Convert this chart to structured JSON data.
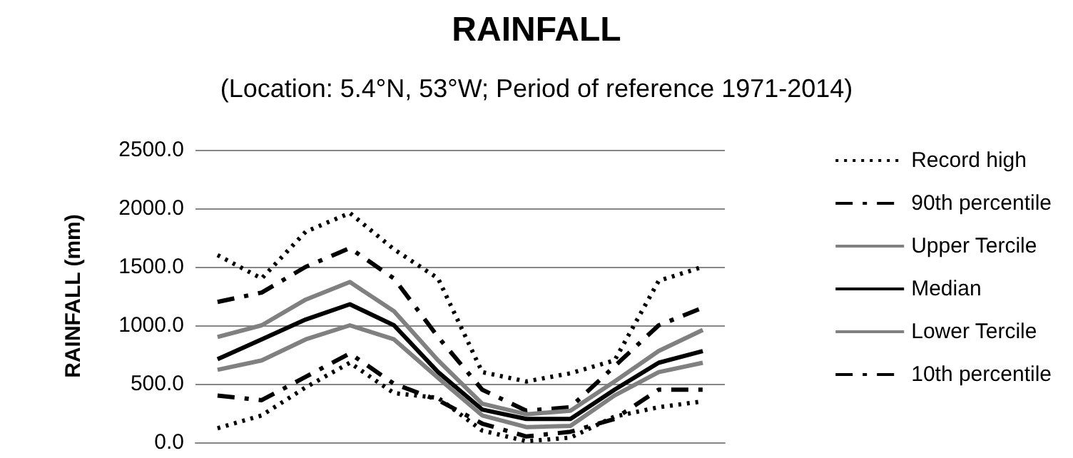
{
  "chart_data": {
    "type": "line",
    "title": "RAINFALL",
    "subtitle": "(Location: 5.4°N, 53°W; Period of reference 1971-2014)",
    "ylabel": "RAINFALL (mm)",
    "categories": [
      null,
      null,
      null,
      null,
      null,
      null,
      null,
      null,
      null,
      null,
      null,
      null
    ],
    "ylim": [
      0,
      2500
    ],
    "yticks": [
      {
        "value": 0,
        "label": "0.0"
      },
      {
        "value": 500,
        "label": "500.0"
      },
      {
        "value": 1000,
        "label": "1000.0"
      },
      {
        "value": 1500,
        "label": "1500.0"
      },
      {
        "value": 2000,
        "label": "2000.0"
      },
      {
        "value": 2500,
        "label": "2500.0"
      }
    ],
    "grid": "y",
    "legend": "right",
    "marker": "none",
    "series": [
      {
        "name": "Record high",
        "color": "#000000",
        "line_style": "dotted",
        "values": [
          1600,
          1400,
          1800,
          1960,
          1650,
          1400,
          600,
          520,
          590,
          700,
          1380,
          1500
        ]
      },
      {
        "name": "90th percentile",
        "color": "#000000",
        "line_style": "dashed",
        "values": [
          1200,
          1280,
          1500,
          1660,
          1400,
          900,
          450,
          270,
          300,
          650,
          1000,
          1150
        ]
      },
      {
        "name": "Upper Tercile",
        "color": "#808080",
        "line_style": "solid",
        "values": [
          900,
          1000,
          1220,
          1370,
          1120,
          700,
          330,
          240,
          270,
          520,
          780,
          960
        ]
      },
      {
        "name": "Median",
        "color": "#000000",
        "line_style": "solid",
        "values": [
          710,
          880,
          1050,
          1180,
          1000,
          600,
          280,
          200,
          200,
          450,
          680,
          780
        ]
      },
      {
        "name": "Lower Tercile",
        "color": "#808080",
        "line_style": "solid",
        "values": [
          620,
          700,
          880,
          1000,
          880,
          550,
          230,
          130,
          140,
          400,
          600,
          680
        ]
      },
      {
        "name": "10th percentile",
        "color": "#000000",
        "line_style": "dashed",
        "values": [
          400,
          360,
          560,
          760,
          500,
          360,
          160,
          50,
          90,
          200,
          450,
          450
        ]
      },
      {
        "color": "#000000",
        "line_style": "dotted",
        "values": [
          120,
          230,
          470,
          680,
          420,
          380,
          100,
          10,
          40,
          220,
          300,
          350
        ]
      }
    ]
  }
}
